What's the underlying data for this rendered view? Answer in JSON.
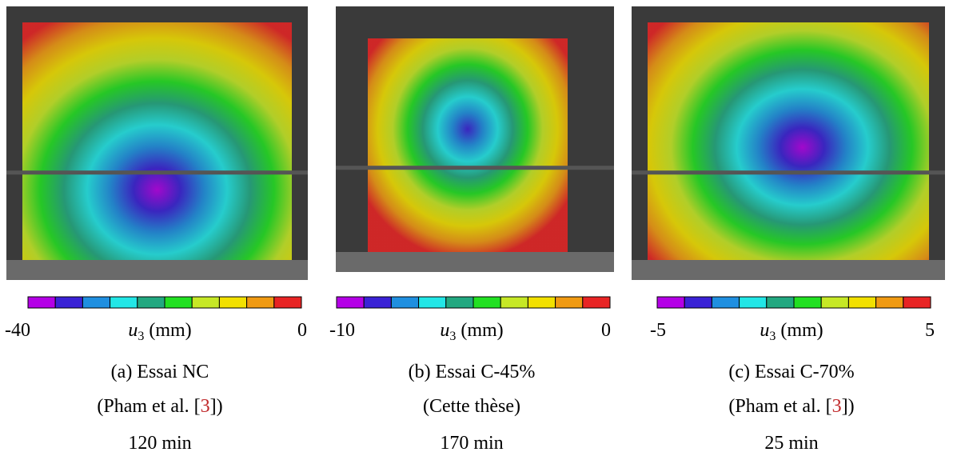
{
  "colorbar_colors": [
    "#b400e6",
    "#3a22d6",
    "#1f8fe0",
    "#22e6e6",
    "#22a880",
    "#22e022",
    "#c6e826",
    "#f2e000",
    "#f09a12",
    "#e82424"
  ],
  "colorbar_label": {
    "symbol": "u",
    "subscript": "3",
    "unit": "(mm)"
  },
  "panels": [
    {
      "colorbar_min": "-40",
      "colorbar_max": "0",
      "caption": "(a) Essai NC",
      "source": {
        "before": "(Pham et al. [",
        "ref": "3",
        "after": "])"
      },
      "time": "120 min"
    },
    {
      "colorbar_min": "-10",
      "colorbar_max": "0",
      "caption": "(b) Essai C-45%",
      "source": {
        "before": "(Cette thèse)"
      },
      "time": "170 min"
    },
    {
      "colorbar_min": "-5",
      "colorbar_max": "5",
      "caption": "(c) Essai C-70%",
      "source": {
        "before": "(Pham et al. [",
        "ref": "3",
        "after": "])"
      },
      "time": "25 min"
    }
  ]
}
